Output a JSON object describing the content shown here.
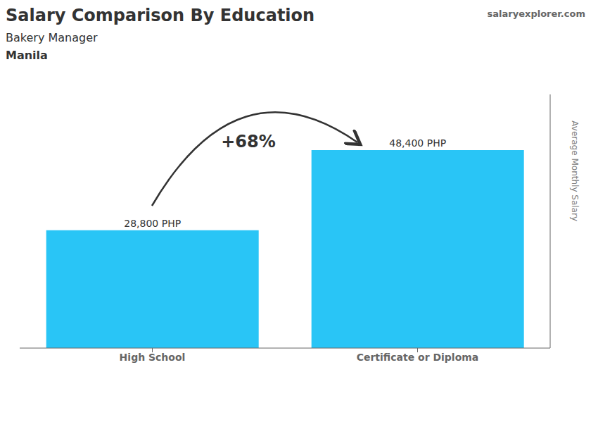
{
  "chart_data": {
    "type": "bar",
    "title": "Salary Comparison By Education",
    "subtitle": "Bakery Manager",
    "annotations": [
      "Manila",
      "salaryexplorer.com",
      "+68%"
    ],
    "y_label": "Average Monthly Salary",
    "categories": [
      "High School",
      "Certificate or Diploma"
    ],
    "values": [
      28800,
      48400
    ],
    "value_labels": [
      "28,800 PHP",
      "48,400 PHP"
    ],
    "color": "#29C5F6",
    "ylim": [
      0,
      62000
    ],
    "tick_labels": "x",
    "data_labels": true,
    "grid": false
  }
}
